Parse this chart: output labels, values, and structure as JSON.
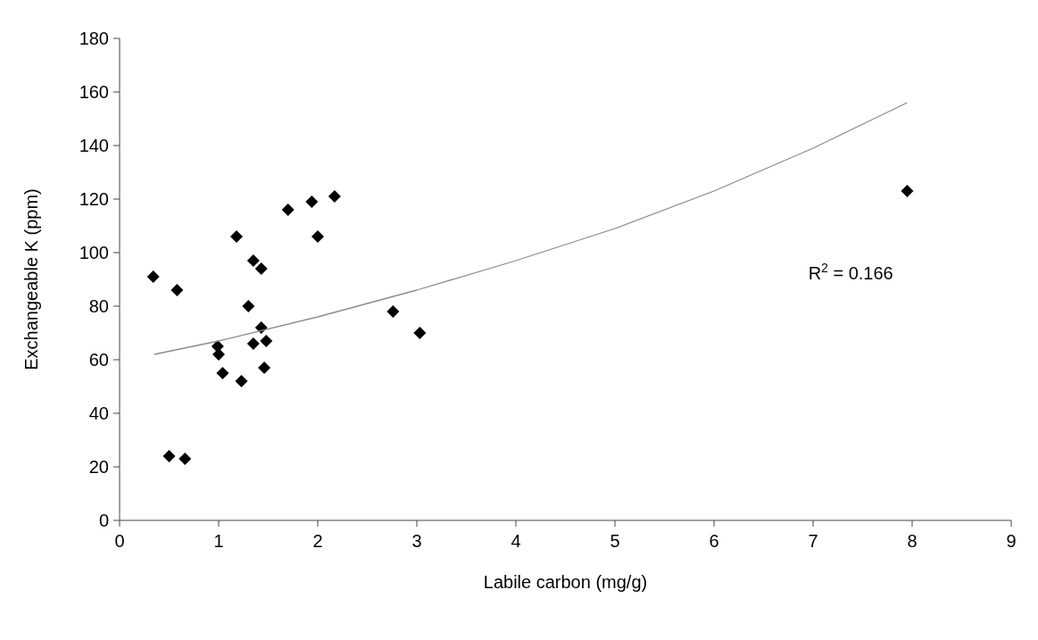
{
  "chart_data": {
    "type": "scatter",
    "xlabel": "Labile carbon (mg/g)",
    "ylabel": "Exchangeable K (ppm)",
    "xlim": [
      0,
      9
    ],
    "xticks": [
      0,
      1,
      2,
      3,
      4,
      5,
      6,
      7,
      8,
      9
    ],
    "ylim": [
      0,
      180
    ],
    "yticks": [
      0,
      20,
      40,
      60,
      80,
      100,
      120,
      140,
      160,
      180
    ],
    "grid": false,
    "marker": "diamond",
    "annotations": [
      "R$^{2}$ = 0.166"
    ],
    "series": [
      {
        "color": "#000000",
        "x": [
          0.34,
          0.58,
          0.5,
          0.66,
          1.18,
          1.35,
          1.43,
          1.3,
          1.43,
          0.99,
          1.0,
          1.35,
          1.48,
          1.04,
          1.46,
          1.23,
          1.7,
          1.94,
          2.17,
          2.0,
          2.76,
          3.03,
          7.95
        ],
        "values": [
          91,
          86,
          24,
          23,
          106,
          97,
          94,
          80,
          72,
          65,
          62,
          66,
          67,
          55,
          57,
          52,
          116,
          119,
          121,
          106,
          78,
          70,
          123
        ]
      },
      {
        "type": "line",
        "color": "#8c8c8c",
        "marker": "none",
        "x": [
          0.35,
          1,
          2,
          3,
          4,
          5,
          6,
          7,
          7.95
        ],
        "values": [
          62,
          67,
          76,
          86,
          97,
          109,
          123,
          139,
          156
        ]
      }
    ]
  }
}
